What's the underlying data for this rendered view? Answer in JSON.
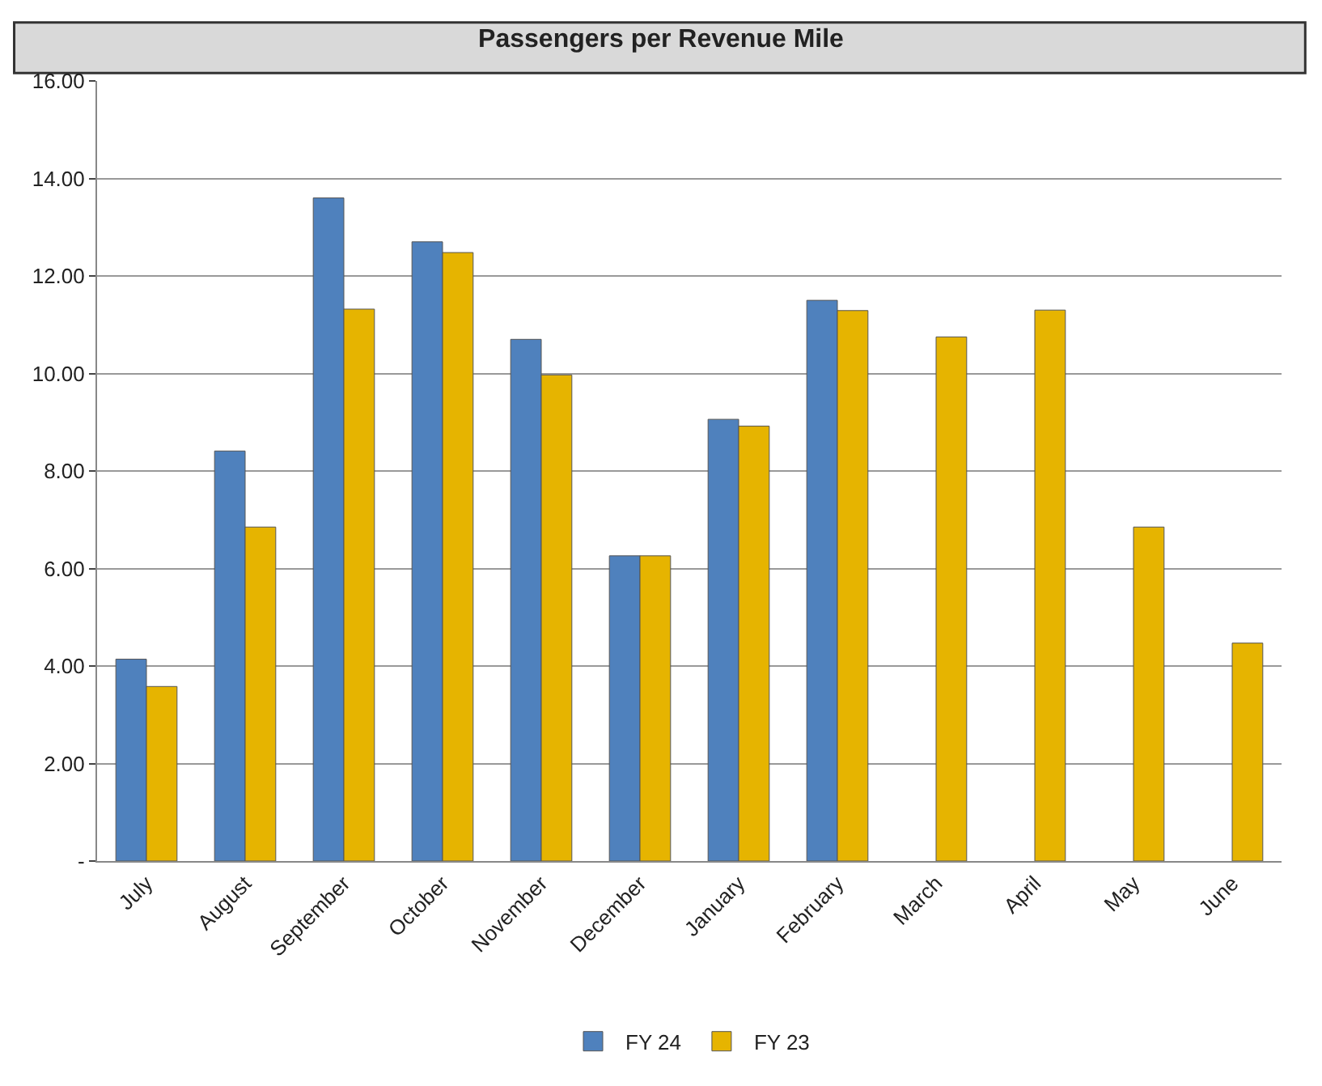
{
  "chart_data": {
    "type": "bar",
    "title": "Passengers per Revenue Mile",
    "categories": [
      "July",
      "August",
      "September",
      "October",
      "November",
      "December",
      "January",
      "February",
      "March",
      "April",
      "May",
      "June"
    ],
    "series": [
      {
        "name": "FY 24",
        "color": "#4f81bd",
        "values": [
          4.14,
          8.41,
          13.6,
          12.7,
          10.7,
          6.26,
          9.06,
          11.5,
          null,
          null,
          null,
          null
        ]
      },
      {
        "name": "FY 23",
        "color": "#e6b400",
        "values": [
          3.58,
          6.85,
          11.32,
          12.48,
          9.97,
          6.26,
          8.92,
          11.29,
          10.75,
          11.3,
          6.85,
          4.47
        ]
      }
    ],
    "ylim": [
      0,
      16
    ],
    "yticks": [
      {
        "value": 0,
        "label": "-"
      },
      {
        "value": 2,
        "label": "2.00"
      },
      {
        "value": 4,
        "label": "4.00"
      },
      {
        "value": 6,
        "label": "6.00"
      },
      {
        "value": 8,
        "label": "8.00"
      },
      {
        "value": 10,
        "label": "10.00"
      },
      {
        "value": 12,
        "label": "12.00"
      },
      {
        "value": 14,
        "label": "14.00"
      },
      {
        "value": 16,
        "label": "16.00"
      }
    ],
    "grid": "y",
    "legend": "bottom"
  }
}
